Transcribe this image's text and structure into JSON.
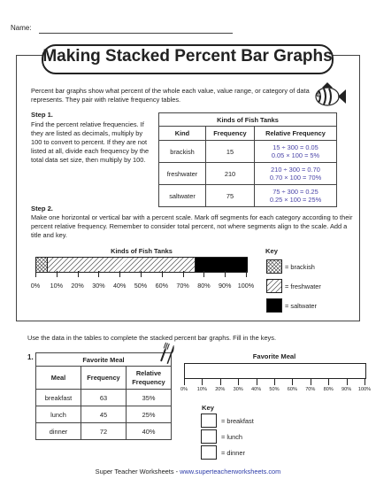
{
  "header": {
    "name_label": "Name:"
  },
  "title": "Making Stacked Percent Bar Graphs",
  "intro": "Percent bar graphs show what percent of the whole each value, value range, or category of data represents. They pair with relative frequency tables.",
  "step1": {
    "heading": "Step 1.",
    "text": "Find the percent relative frequencies. If they are listed as decimals, multiply by 100 to convert to percent. If they are not listed at all, divide each frequency by the total data set size, then multiply by 100."
  },
  "fish_table": {
    "caption": "Kinds of Fish Tanks",
    "headers": [
      "Kind",
      "Frequency",
      "Relative Frequency"
    ],
    "rows": [
      {
        "kind": "brackish",
        "frequency": "15",
        "rel1": "15 ÷ 300 = 0.05",
        "rel2": "0.05 × 100 = 5%"
      },
      {
        "kind": "freshwater",
        "frequency": "210",
        "rel1": "210 ÷ 300 = 0.70",
        "rel2": "0.70 × 100 = 70%"
      },
      {
        "kind": "saltwater",
        "frequency": "75",
        "rel1": "75 ÷ 300 = 0.25",
        "rel2": "0.25 × 100 = 25%"
      }
    ]
  },
  "step2": {
    "heading": "Step 2.",
    "text": "Make one horizontal or vertical bar with a percent scale. Mark off segments for each category according to their percent relative frequency. Remember to consider total percent, not where segments align to the scale. Add a title and key."
  },
  "chart_data": {
    "type": "bar",
    "title": "Kinds of Fish Tanks",
    "orientation": "horizontal-stacked",
    "series": [
      {
        "name": "brackish",
        "values": [
          5
        ]
      },
      {
        "name": "freshwater",
        "values": [
          70
        ]
      },
      {
        "name": "saltwater",
        "values": [
          25
        ]
      }
    ],
    "xlim": [
      0,
      100
    ],
    "ticks": [
      "0%",
      "10%",
      "20%",
      "30%",
      "40%",
      "50%",
      "60%",
      "70%",
      "80%",
      "90%",
      "100%"
    ]
  },
  "key": {
    "heading": "Key",
    "items": [
      "= brackish",
      "= freshwater",
      "= saltwater"
    ]
  },
  "instructions": "Use the data in the tables to complete the stacked percent bar graphs. Fill in the keys.",
  "problem1": {
    "number": "1.",
    "table": {
      "caption": "Favorite Meal",
      "headers": [
        "Meal",
        "Frequency",
        "Relative Frequency"
      ],
      "rows": [
        {
          "meal": "breakfast",
          "frequency": "63",
          "relative": "35%"
        },
        {
          "meal": "lunch",
          "frequency": "45",
          "relative": "25%"
        },
        {
          "meal": "dinner",
          "frequency": "72",
          "relative": "40%"
        }
      ]
    },
    "chart_title": "Favorite Meal",
    "ticks": [
      "0%",
      "10%",
      "20%",
      "30%",
      "40%",
      "50%",
      "60%",
      "70%",
      "80%",
      "90%",
      "100%"
    ],
    "key_heading": "Key",
    "key_items": [
      "= breakfast",
      "= lunch",
      "= dinner"
    ]
  },
  "footer": {
    "brand": "Super Teacher Worksheets",
    "sep": " - ",
    "site": "www.superteacherworksheets.com"
  }
}
